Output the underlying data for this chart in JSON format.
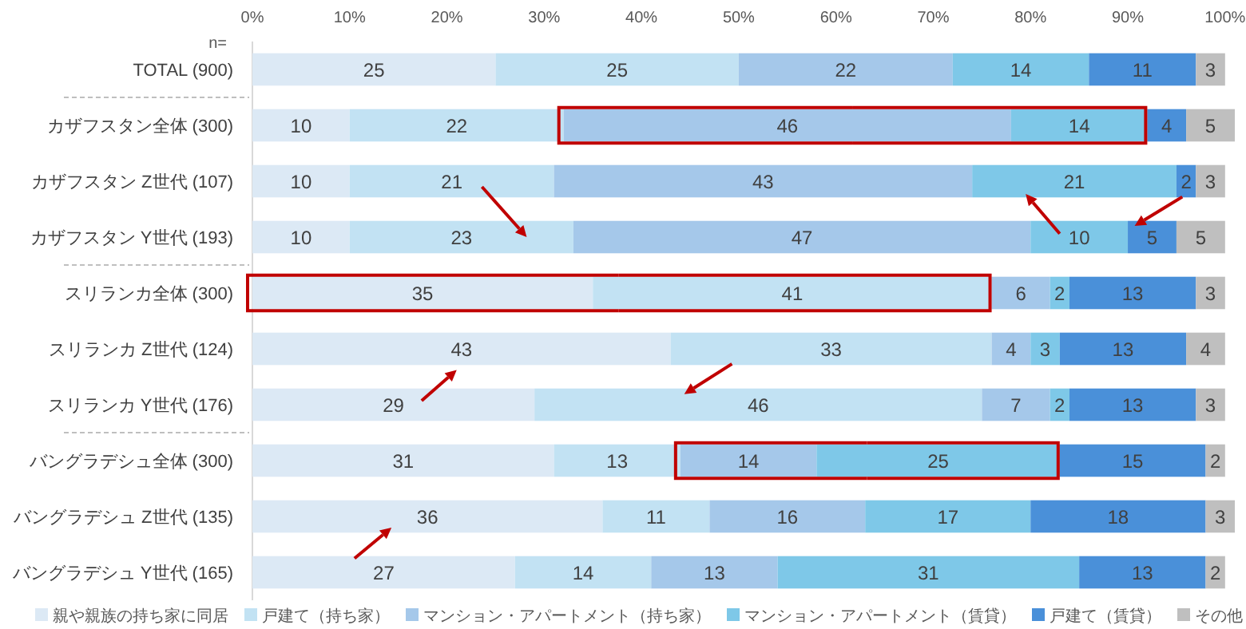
{
  "chart_data": {
    "type": "bar",
    "orientation": "horizontal",
    "stacked": true,
    "data_labels": true,
    "legend": "bottom",
    "categories": [
      "TOTAL (900)",
      "カザフスタン全体 (300)",
      "カザフスタン Z世代 (107)",
      "カザフスタン Y世代 (193)",
      "スリランカ全体 (300)",
      "スリランカ Z世代 (124)",
      "スリランカ Y世代 (176)",
      "バングラデシュ全体 (300)",
      "バングラデシュ Z世代 (135)",
      "バングラデシュ Y世代 (165)"
    ],
    "xlim": [
      0,
      101
    ],
    "xticks": [
      {
        "value": 0,
        "label": "0%"
      },
      {
        "value": 10,
        "label": "10%"
      },
      {
        "value": 20,
        "label": "20%"
      },
      {
        "value": 30,
        "label": "30%"
      },
      {
        "value": 40,
        "label": "40%"
      },
      {
        "value": 50,
        "label": "50%"
      },
      {
        "value": 60,
        "label": "60%"
      },
      {
        "value": 70,
        "label": "70%"
      },
      {
        "value": 80,
        "label": "80%"
      },
      {
        "value": 90,
        "label": "90%"
      },
      {
        "value": 100,
        "label": "100%"
      }
    ],
    "annotations": [
      "n="
    ],
    "series": [
      {
        "name": "親や親族の持ち家に同居",
        "color": "#dce9f5",
        "values": [
          25,
          10,
          10,
          10,
          35,
          43,
          29,
          31,
          36,
          27
        ]
      },
      {
        "name": "戸建て（持ち家）",
        "color": "#c2e2f3",
        "values": [
          25,
          22,
          21,
          23,
          41,
          33,
          46,
          13,
          11,
          14
        ]
      },
      {
        "name": "マンション・アパートメント（持ち家）",
        "color": "#a5c8ea",
        "values": [
          22,
          46,
          43,
          47,
          6,
          4,
          7,
          14,
          16,
          13
        ]
      },
      {
        "name": "マンション・アパートメント（賃貸）",
        "color": "#7ec8e8",
        "values": [
          14,
          14,
          21,
          10,
          2,
          3,
          2,
          25,
          17,
          31
        ]
      },
      {
        "name": "戸建て（賃貸）",
        "color": "#4a90d9",
        "values": [
          11,
          4,
          2,
          5,
          13,
          13,
          13,
          15,
          18,
          13
        ]
      },
      {
        "name": "その他",
        "color": "#bfbfbf",
        "values": [
          3,
          5,
          3,
          5,
          3,
          4,
          3,
          2,
          3,
          2
        ]
      }
    ]
  }
}
